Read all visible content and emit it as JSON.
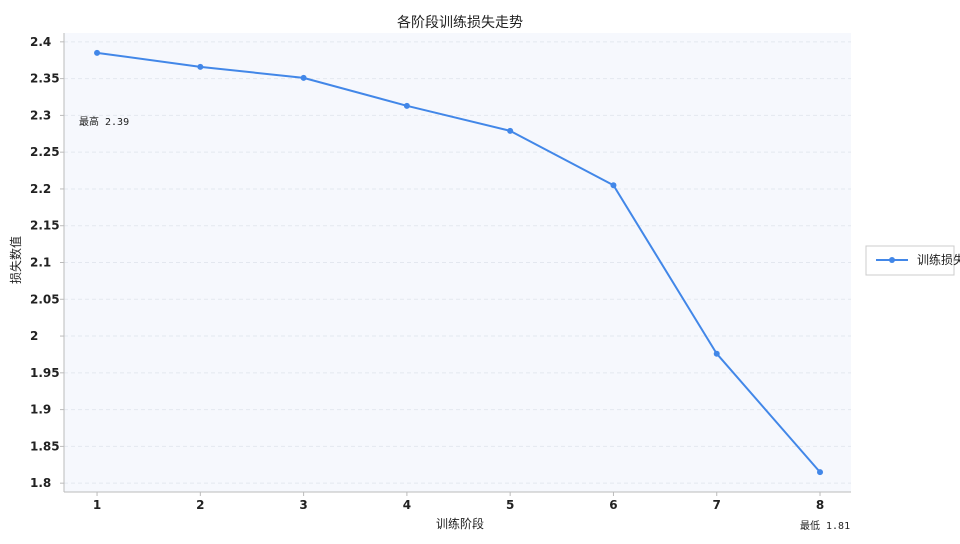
{
  "chart_data": {
    "type": "line",
    "title": "各阶段训练损失走势",
    "xlabel": "训练阶段",
    "ylabel": "损失数值",
    "x": [
      1,
      2,
      3,
      4,
      5,
      6,
      7,
      8
    ],
    "series": [
      {
        "name": "训练损失",
        "values": [
          2.385,
          2.366,
          2.351,
          2.313,
          2.279,
          2.205,
          1.976,
          1.815
        ],
        "color": "#4287e8"
      }
    ],
    "xlim": [
      0.68,
      8.3
    ],
    "ylim": [
      1.788,
      2.412
    ],
    "yticks": [
      1.8,
      1.85,
      1.9,
      1.95,
      2,
      2.05,
      2.1,
      2.15,
      2.2,
      2.25,
      2.3,
      2.35,
      2.4
    ],
    "ytick_labels": [
      "1.8",
      "1.85",
      "1.9",
      "1.95",
      "2",
      "2.05",
      "2.1",
      "2.15",
      "2.2",
      "2.25",
      "2.3",
      "2.35",
      "2.4"
    ],
    "xtick_labels": [
      "1",
      "2",
      "3",
      "4",
      "5",
      "6",
      "7",
      "8"
    ],
    "grid": true,
    "legend_position": "right",
    "annotations": [
      {
        "text": "最高 2.39",
        "anchor": "top-left"
      },
      {
        "text": "最低 1.81",
        "anchor": "bottom-right"
      }
    ],
    "colors": {
      "plot_background": "#f6f8fd",
      "grid": "#e3e7ef",
      "axis": "#bbbbbb"
    }
  }
}
